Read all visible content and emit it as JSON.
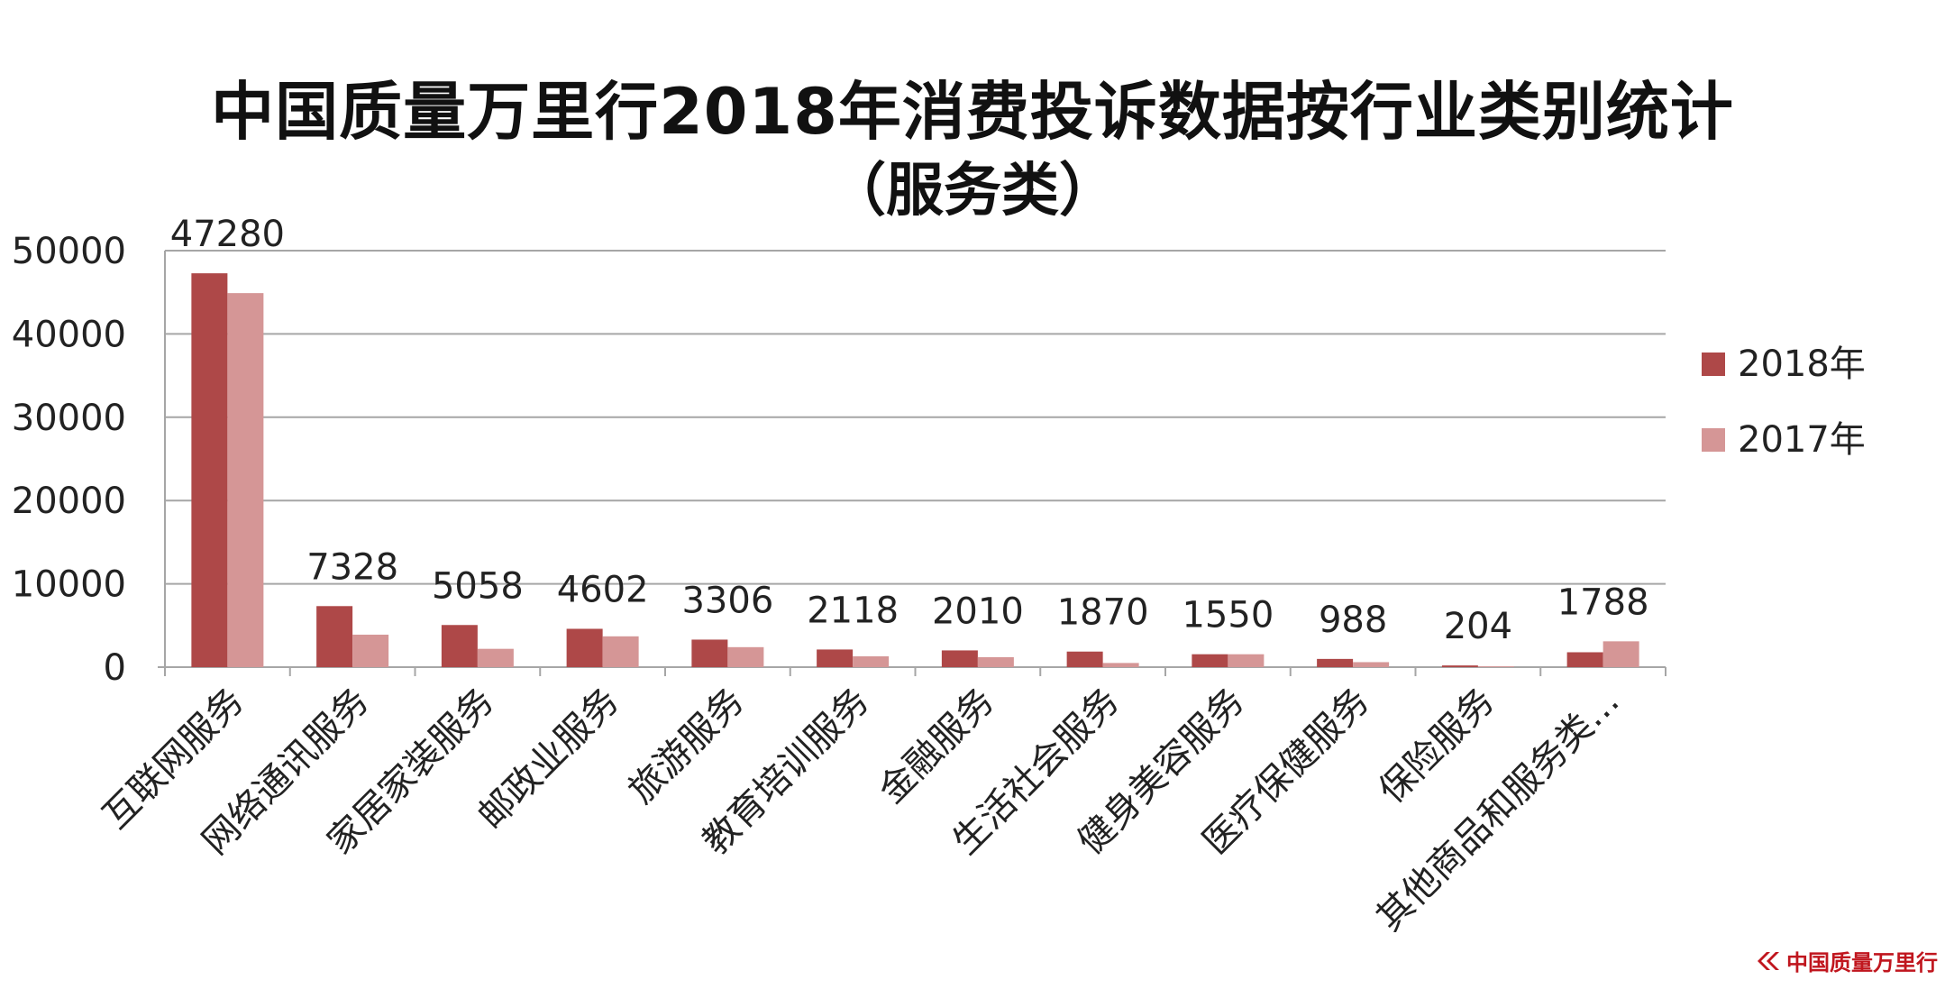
{
  "chart_data": {
    "type": "bar",
    "title": "中国质量万里行2018年消费投诉数据按行业类别统计",
    "subtitle": "（服务类）",
    "categories": [
      "互联网服务",
      "网络通讯服务",
      "家居家装服务",
      "邮政业服务",
      "旅游服务",
      "教育培训服务",
      "金融服务",
      "生活社会服务",
      "健身美容服务",
      "医疗保健服务",
      "保险服务",
      "其他商品和服务类…"
    ],
    "series": [
      {
        "name": "2018年",
        "color": "#ae4848",
        "values": [
          47280,
          7328,
          5058,
          4602,
          3306,
          2118,
          2010,
          1870,
          1550,
          988,
          204,
          1788
        ]
      },
      {
        "name": "2017年",
        "color": "#d59696",
        "values": [
          44900,
          3900,
          2200,
          3700,
          2400,
          1300,
          1200,
          500,
          1550,
          600,
          100,
          3100
        ]
      }
    ],
    "data_labels": [
      "47280",
      "7328",
      "5058",
      "4602",
      "3306",
      "2118",
      "2010",
      "1870",
      "1550",
      "988",
      "204",
      "1788"
    ],
    "yticks": [
      "50000",
      "40000",
      "30000",
      "20000",
      "10000",
      "0"
    ],
    "ylim": [
      0,
      50000
    ],
    "grid": true,
    "legend_position": "right"
  },
  "watermark": {
    "text": "中国质量万里行",
    "icon": "brand-logo-icon"
  }
}
